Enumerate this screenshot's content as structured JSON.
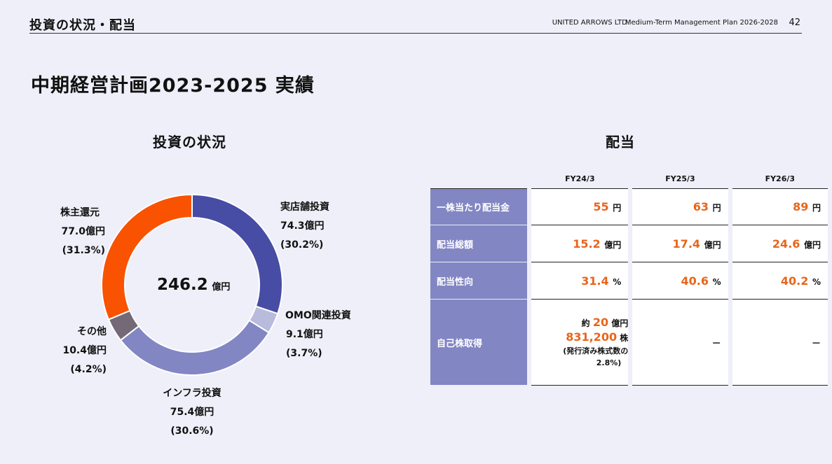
{
  "header": {
    "section": "投資の状況・配当",
    "company": "UNITED ARROWS LTD.",
    "plan": "Medium-Term Management Plan 2026-2028",
    "page": "42"
  },
  "title": "中期経営計画2023-2025 実績",
  "investment": {
    "subtitle": "投資の状況",
    "center_value": "246.2",
    "center_unit": "億円",
    "labels": [
      {
        "name": "実店舗投資",
        "value": "74.3億円",
        "pct": "(30.2%)"
      },
      {
        "name": "OMO関連投資",
        "value": "9.1億円",
        "pct": "(3.7%)"
      },
      {
        "name": "インフラ投資",
        "value": "75.4億円",
        "pct": "(30.6%)"
      },
      {
        "name": "その他",
        "value": "10.4億円",
        "pct": "(4.2%)"
      },
      {
        "name": "株主還元",
        "value": "77.0億円",
        "pct": "(31.3%)"
      }
    ]
  },
  "chart_data": {
    "type": "pie",
    "title": "投資の状況",
    "total": 246.2,
    "unit": "億円",
    "categories": [
      "実店舗投資",
      "OMO関連投資",
      "インフラ投資",
      "その他",
      "株主還元"
    ],
    "values": [
      74.3,
      9.1,
      75.4,
      10.4,
      77.0
    ],
    "percent": [
      30.2,
      3.7,
      30.6,
      4.2,
      31.3
    ],
    "colors": [
      "#474ca5",
      "#b9bbdd",
      "#8286c3",
      "#746a77",
      "#f95200"
    ]
  },
  "dividend": {
    "subtitle": "配当",
    "columns": [
      "FY24/3",
      "FY25/3",
      "FY26/3"
    ],
    "rows": [
      {
        "label": "一株当たり配当金",
        "cells": [
          {
            "n": "55",
            "u": "円"
          },
          {
            "n": "63",
            "u": "円"
          },
          {
            "n": "89",
            "u": "円"
          }
        ]
      },
      {
        "label": "配当総額",
        "cells": [
          {
            "n": "15.2",
            "u": "億円"
          },
          {
            "n": "17.4",
            "u": "億円"
          },
          {
            "n": "24.6",
            "u": "億円"
          }
        ]
      },
      {
        "label": "配当性向",
        "cells": [
          {
            "n": "31.4",
            "u": "%"
          },
          {
            "n": "40.6",
            "u": "%"
          },
          {
            "n": "40.2",
            "u": "%"
          }
        ]
      }
    ],
    "buyback": {
      "label": "自己株取得",
      "line1_pre": "約",
      "line1_num": "20",
      "line1_unit": "億円",
      "line2_num": "831,200",
      "line2_unit": "株",
      "line3": "(発行済み株式数の",
      "line4": "2.8%)",
      "dash2": "－",
      "dash3": "－"
    }
  }
}
